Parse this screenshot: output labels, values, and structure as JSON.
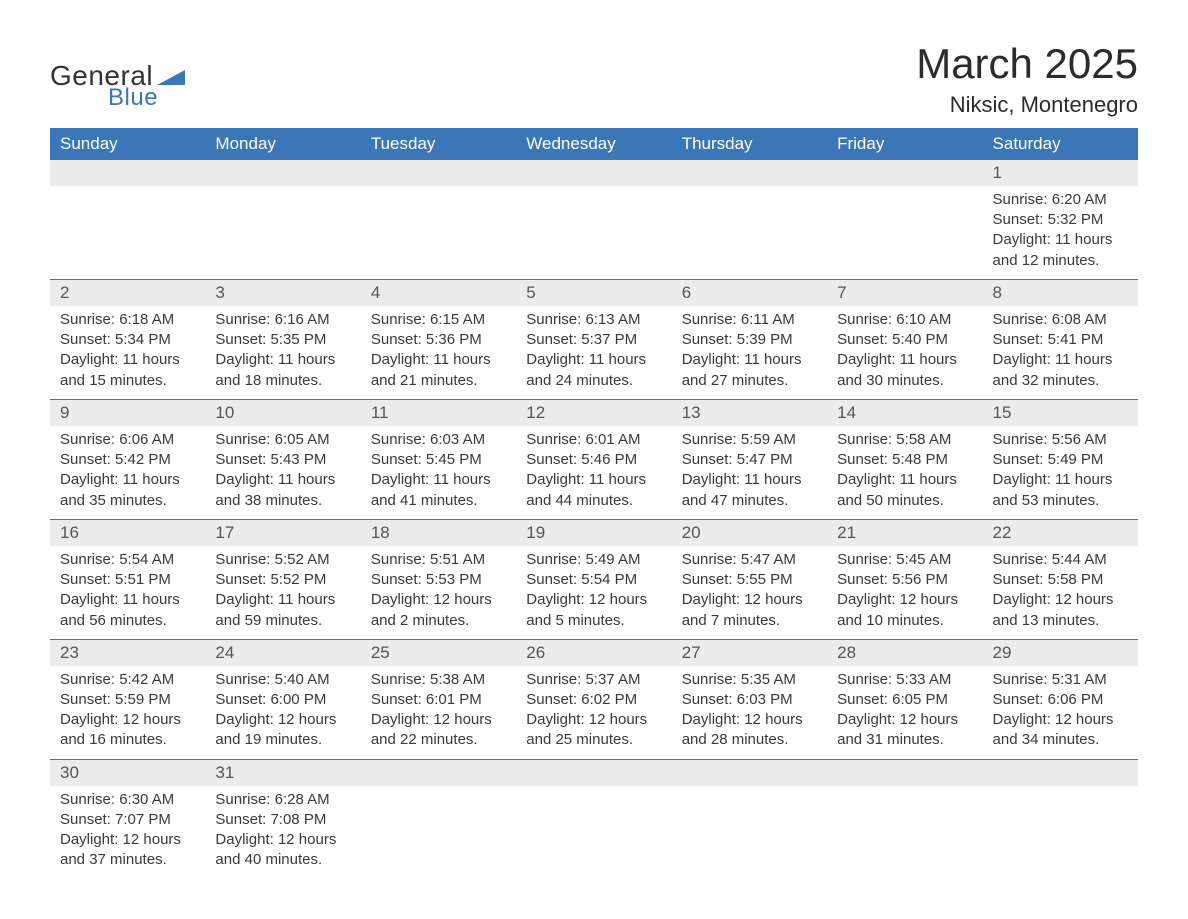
{
  "logo": {
    "text_general": "General",
    "text_blue": "Blue",
    "icon_color": "#3a76b8"
  },
  "title": "March 2025",
  "location": "Niksic, Montenegro",
  "colors": {
    "header_bg": "#3a76b8",
    "header_text": "#ffffff",
    "daynum_bg": "#ececec",
    "row_border": "#3a76b8",
    "body_text": "#3a3a3a",
    "page_bg": "#ffffff"
  },
  "typography": {
    "title_fontsize": 42,
    "location_fontsize": 22,
    "header_fontsize": 17,
    "daynum_fontsize": 17,
    "cell_fontsize": 15
  },
  "days_of_week": [
    "Sunday",
    "Monday",
    "Tuesday",
    "Wednesday",
    "Thursday",
    "Friday",
    "Saturday"
  ],
  "weeks": [
    [
      null,
      null,
      null,
      null,
      null,
      null,
      {
        "n": "1",
        "sunrise": "Sunrise: 6:20 AM",
        "sunset": "Sunset: 5:32 PM",
        "day1": "Daylight: 11 hours",
        "day2": "and 12 minutes."
      }
    ],
    [
      {
        "n": "2",
        "sunrise": "Sunrise: 6:18 AM",
        "sunset": "Sunset: 5:34 PM",
        "day1": "Daylight: 11 hours",
        "day2": "and 15 minutes."
      },
      {
        "n": "3",
        "sunrise": "Sunrise: 6:16 AM",
        "sunset": "Sunset: 5:35 PM",
        "day1": "Daylight: 11 hours",
        "day2": "and 18 minutes."
      },
      {
        "n": "4",
        "sunrise": "Sunrise: 6:15 AM",
        "sunset": "Sunset: 5:36 PM",
        "day1": "Daylight: 11 hours",
        "day2": "and 21 minutes."
      },
      {
        "n": "5",
        "sunrise": "Sunrise: 6:13 AM",
        "sunset": "Sunset: 5:37 PM",
        "day1": "Daylight: 11 hours",
        "day2": "and 24 minutes."
      },
      {
        "n": "6",
        "sunrise": "Sunrise: 6:11 AM",
        "sunset": "Sunset: 5:39 PM",
        "day1": "Daylight: 11 hours",
        "day2": "and 27 minutes."
      },
      {
        "n": "7",
        "sunrise": "Sunrise: 6:10 AM",
        "sunset": "Sunset: 5:40 PM",
        "day1": "Daylight: 11 hours",
        "day2": "and 30 minutes."
      },
      {
        "n": "8",
        "sunrise": "Sunrise: 6:08 AM",
        "sunset": "Sunset: 5:41 PM",
        "day1": "Daylight: 11 hours",
        "day2": "and 32 minutes."
      }
    ],
    [
      {
        "n": "9",
        "sunrise": "Sunrise: 6:06 AM",
        "sunset": "Sunset: 5:42 PM",
        "day1": "Daylight: 11 hours",
        "day2": "and 35 minutes."
      },
      {
        "n": "10",
        "sunrise": "Sunrise: 6:05 AM",
        "sunset": "Sunset: 5:43 PM",
        "day1": "Daylight: 11 hours",
        "day2": "and 38 minutes."
      },
      {
        "n": "11",
        "sunrise": "Sunrise: 6:03 AM",
        "sunset": "Sunset: 5:45 PM",
        "day1": "Daylight: 11 hours",
        "day2": "and 41 minutes."
      },
      {
        "n": "12",
        "sunrise": "Sunrise: 6:01 AM",
        "sunset": "Sunset: 5:46 PM",
        "day1": "Daylight: 11 hours",
        "day2": "and 44 minutes."
      },
      {
        "n": "13",
        "sunrise": "Sunrise: 5:59 AM",
        "sunset": "Sunset: 5:47 PM",
        "day1": "Daylight: 11 hours",
        "day2": "and 47 minutes."
      },
      {
        "n": "14",
        "sunrise": "Sunrise: 5:58 AM",
        "sunset": "Sunset: 5:48 PM",
        "day1": "Daylight: 11 hours",
        "day2": "and 50 minutes."
      },
      {
        "n": "15",
        "sunrise": "Sunrise: 5:56 AM",
        "sunset": "Sunset: 5:49 PM",
        "day1": "Daylight: 11 hours",
        "day2": "and 53 minutes."
      }
    ],
    [
      {
        "n": "16",
        "sunrise": "Sunrise: 5:54 AM",
        "sunset": "Sunset: 5:51 PM",
        "day1": "Daylight: 11 hours",
        "day2": "and 56 minutes."
      },
      {
        "n": "17",
        "sunrise": "Sunrise: 5:52 AM",
        "sunset": "Sunset: 5:52 PM",
        "day1": "Daylight: 11 hours",
        "day2": "and 59 minutes."
      },
      {
        "n": "18",
        "sunrise": "Sunrise: 5:51 AM",
        "sunset": "Sunset: 5:53 PM",
        "day1": "Daylight: 12 hours",
        "day2": "and 2 minutes."
      },
      {
        "n": "19",
        "sunrise": "Sunrise: 5:49 AM",
        "sunset": "Sunset: 5:54 PM",
        "day1": "Daylight: 12 hours",
        "day2": "and 5 minutes."
      },
      {
        "n": "20",
        "sunrise": "Sunrise: 5:47 AM",
        "sunset": "Sunset: 5:55 PM",
        "day1": "Daylight: 12 hours",
        "day2": "and 7 minutes."
      },
      {
        "n": "21",
        "sunrise": "Sunrise: 5:45 AM",
        "sunset": "Sunset: 5:56 PM",
        "day1": "Daylight: 12 hours",
        "day2": "and 10 minutes."
      },
      {
        "n": "22",
        "sunrise": "Sunrise: 5:44 AM",
        "sunset": "Sunset: 5:58 PM",
        "day1": "Daylight: 12 hours",
        "day2": "and 13 minutes."
      }
    ],
    [
      {
        "n": "23",
        "sunrise": "Sunrise: 5:42 AM",
        "sunset": "Sunset: 5:59 PM",
        "day1": "Daylight: 12 hours",
        "day2": "and 16 minutes."
      },
      {
        "n": "24",
        "sunrise": "Sunrise: 5:40 AM",
        "sunset": "Sunset: 6:00 PM",
        "day1": "Daylight: 12 hours",
        "day2": "and 19 minutes."
      },
      {
        "n": "25",
        "sunrise": "Sunrise: 5:38 AM",
        "sunset": "Sunset: 6:01 PM",
        "day1": "Daylight: 12 hours",
        "day2": "and 22 minutes."
      },
      {
        "n": "26",
        "sunrise": "Sunrise: 5:37 AM",
        "sunset": "Sunset: 6:02 PM",
        "day1": "Daylight: 12 hours",
        "day2": "and 25 minutes."
      },
      {
        "n": "27",
        "sunrise": "Sunrise: 5:35 AM",
        "sunset": "Sunset: 6:03 PM",
        "day1": "Daylight: 12 hours",
        "day2": "and 28 minutes."
      },
      {
        "n": "28",
        "sunrise": "Sunrise: 5:33 AM",
        "sunset": "Sunset: 6:05 PM",
        "day1": "Daylight: 12 hours",
        "day2": "and 31 minutes."
      },
      {
        "n": "29",
        "sunrise": "Sunrise: 5:31 AM",
        "sunset": "Sunset: 6:06 PM",
        "day1": "Daylight: 12 hours",
        "day2": "and 34 minutes."
      }
    ],
    [
      {
        "n": "30",
        "sunrise": "Sunrise: 6:30 AM",
        "sunset": "Sunset: 7:07 PM",
        "day1": "Daylight: 12 hours",
        "day2": "and 37 minutes."
      },
      {
        "n": "31",
        "sunrise": "Sunrise: 6:28 AM",
        "sunset": "Sunset: 7:08 PM",
        "day1": "Daylight: 12 hours",
        "day2": "and 40 minutes."
      },
      null,
      null,
      null,
      null,
      null
    ]
  ]
}
